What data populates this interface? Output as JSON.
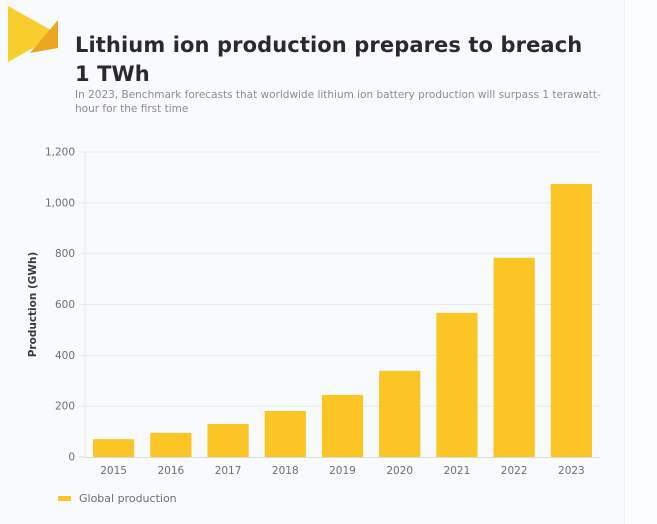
{
  "header": {
    "title": "Lithium ion production prepares to breach 1 TWh",
    "subtitle": "In 2023, Benchmark forecasts that worldwide lithium ion battery production will surpass 1 terawatt-hour for the first time",
    "logo_icon": "benchmark-logo-icon"
  },
  "colors": {
    "bar": "#fcc526",
    "logo_light": "#f8cd2e",
    "logo_dark": "#eaa722",
    "grid": "#e7e8ec",
    "axis": "#d9dade"
  },
  "chart_data": {
    "type": "bar",
    "title": "Lithium ion production prepares to breach 1 TWh",
    "subtitle": "In 2023, Benchmark forecasts that worldwide lithium ion battery production will surpass 1 terawatt-hour for the first time",
    "xlabel": "",
    "ylabel": "Production (GWh)",
    "categories": [
      "2015",
      "2016",
      "2017",
      "2018",
      "2019",
      "2020",
      "2021",
      "2022",
      "2023"
    ],
    "series": [
      {
        "name": "Global production",
        "values": [
          70,
          95,
          130,
          181,
          244,
          339,
          567,
          784,
          1074
        ]
      }
    ],
    "ylim": [
      0,
      1200
    ],
    "yticks": [
      0,
      200,
      400,
      600,
      800,
      1000,
      1200
    ],
    "ytick_labels": [
      "0",
      "200",
      "400",
      "600",
      "800",
      "1,000",
      "1,200"
    ],
    "grid": true,
    "legend": "bottom-left"
  },
  "legend": {
    "label": "Global production"
  }
}
